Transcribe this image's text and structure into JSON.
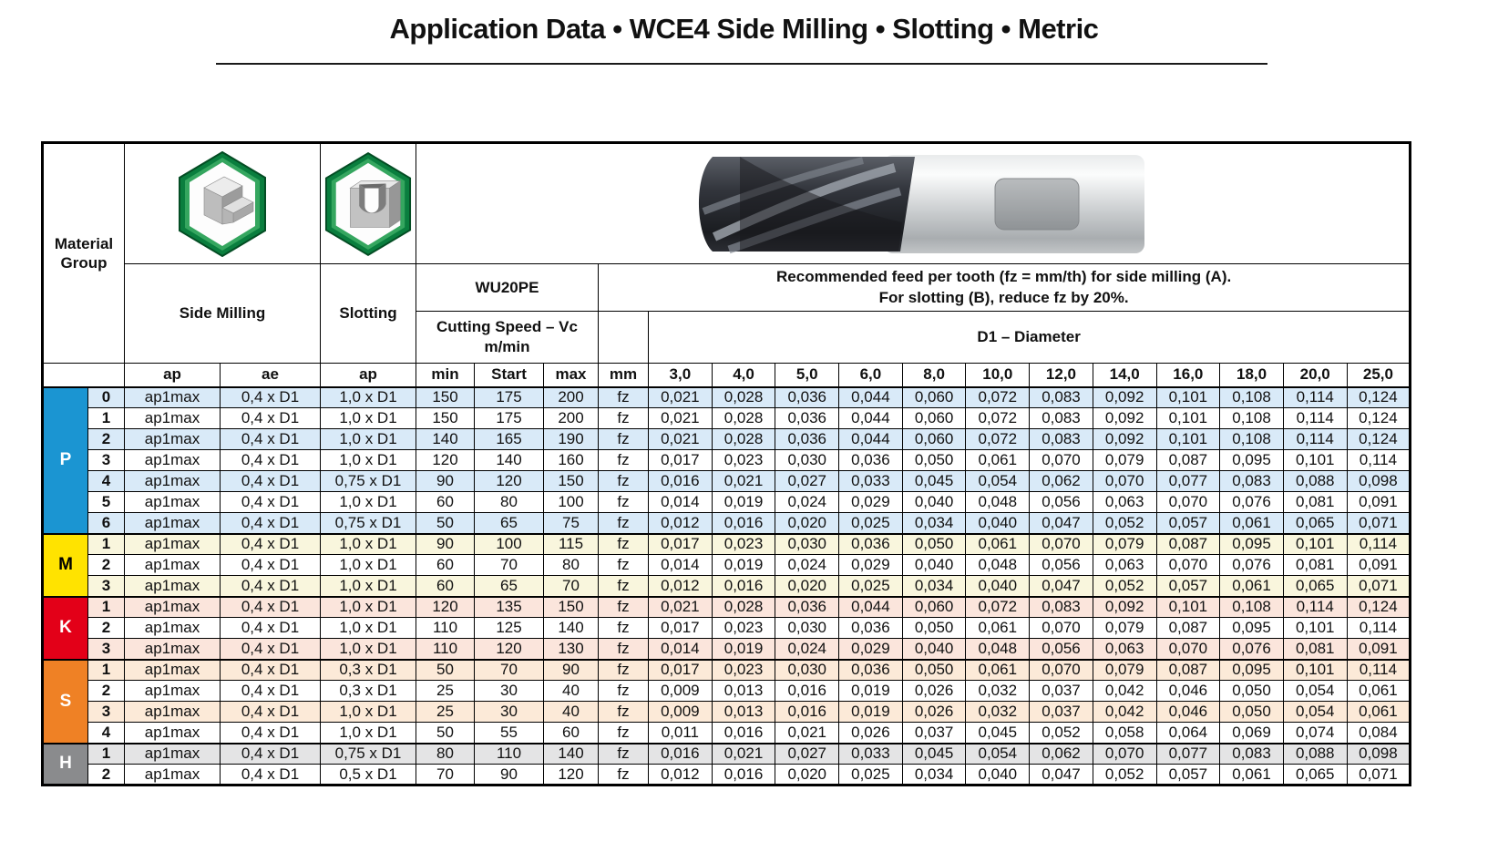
{
  "title": "Application Data • WCE4 Side Milling • Slotting • Metric",
  "header": {
    "material_group": "Material Group",
    "side_milling": "Side Milling",
    "slotting": "Slotting",
    "tool_grade": "WU20PE",
    "cutting_speed_line1": "Cutting Speed – Vc",
    "cutting_speed_line2": "m/min",
    "feed_note_line1": "Recommended feed per tooth (fz = mm/th) for side milling (A).",
    "feed_note_line2": "For slotting (B), reduce fz by 20%.",
    "diameter_label": "D1 – Diameter",
    "sub_headers": [
      "ap",
      "ae",
      "ap",
      "min",
      "Start",
      "max",
      "mm"
    ],
    "diameters": [
      "3,0",
      "4,0",
      "5,0",
      "6,0",
      "8,0",
      "10,0",
      "12,0",
      "14,0",
      "16,0",
      "18,0",
      "20,0",
      "25,0"
    ]
  },
  "icons": {
    "side_milling": "side-milling-hex-icon",
    "slotting": "slotting-hex-icon",
    "tool_photo": "end-mill-photo"
  },
  "groups": [
    {
      "letter": "P",
      "color": "#1b95d2",
      "text_color": "#ffffff",
      "stripe_color": "#d9eaf8",
      "rows": [
        {
          "num": "0",
          "ap": "ap1max",
          "ae": "0,4 x D1",
          "ap_slot": "1,0 x D1",
          "vc_min": "150",
          "vc_start": "175",
          "vc_max": "200",
          "unit": "fz",
          "fz": [
            "0,021",
            "0,028",
            "0,036",
            "0,044",
            "0,060",
            "0,072",
            "0,083",
            "0,092",
            "0,101",
            "0,108",
            "0,114",
            "0,124"
          ]
        },
        {
          "num": "1",
          "ap": "ap1max",
          "ae": "0,4 x D1",
          "ap_slot": "1,0 x D1",
          "vc_min": "150",
          "vc_start": "175",
          "vc_max": "200",
          "unit": "fz",
          "fz": [
            "0,021",
            "0,028",
            "0,036",
            "0,044",
            "0,060",
            "0,072",
            "0,083",
            "0,092",
            "0,101",
            "0,108",
            "0,114",
            "0,124"
          ]
        },
        {
          "num": "2",
          "ap": "ap1max",
          "ae": "0,4 x D1",
          "ap_slot": "1,0 x D1",
          "vc_min": "140",
          "vc_start": "165",
          "vc_max": "190",
          "unit": "fz",
          "fz": [
            "0,021",
            "0,028",
            "0,036",
            "0,044",
            "0,060",
            "0,072",
            "0,083",
            "0,092",
            "0,101",
            "0,108",
            "0,114",
            "0,124"
          ]
        },
        {
          "num": "3",
          "ap": "ap1max",
          "ae": "0,4 x D1",
          "ap_slot": "1,0 x D1",
          "vc_min": "120",
          "vc_start": "140",
          "vc_max": "160",
          "unit": "fz",
          "fz": [
            "0,017",
            "0,023",
            "0,030",
            "0,036",
            "0,050",
            "0,061",
            "0,070",
            "0,079",
            "0,087",
            "0,095",
            "0,101",
            "0,114"
          ]
        },
        {
          "num": "4",
          "ap": "ap1max",
          "ae": "0,4 x D1",
          "ap_slot": "0,75 x D1",
          "vc_min": "90",
          "vc_start": "120",
          "vc_max": "150",
          "unit": "fz",
          "fz": [
            "0,016",
            "0,021",
            "0,027",
            "0,033",
            "0,045",
            "0,054",
            "0,062",
            "0,070",
            "0,077",
            "0,083",
            "0,088",
            "0,098"
          ]
        },
        {
          "num": "5",
          "ap": "ap1max",
          "ae": "0,4 x D1",
          "ap_slot": "1,0 x D1",
          "vc_min": "60",
          "vc_start": "80",
          "vc_max": "100",
          "unit": "fz",
          "fz": [
            "0,014",
            "0,019",
            "0,024",
            "0,029",
            "0,040",
            "0,048",
            "0,056",
            "0,063",
            "0,070",
            "0,076",
            "0,081",
            "0,091"
          ]
        },
        {
          "num": "6",
          "ap": "ap1max",
          "ae": "0,4 x D1",
          "ap_slot": "0,75 x D1",
          "vc_min": "50",
          "vc_start": "65",
          "vc_max": "75",
          "unit": "fz",
          "fz": [
            "0,012",
            "0,016",
            "0,020",
            "0,025",
            "0,034",
            "0,040",
            "0,047",
            "0,052",
            "0,057",
            "0,061",
            "0,065",
            "0,071"
          ]
        }
      ]
    },
    {
      "letter": "M",
      "color": "#ffe300",
      "text_color": "#000000",
      "stripe_color": "#f9f6dd",
      "rows": [
        {
          "num": "1",
          "ap": "ap1max",
          "ae": "0,4 x D1",
          "ap_slot": "1,0 x D1",
          "vc_min": "90",
          "vc_start": "100",
          "vc_max": "115",
          "unit": "fz",
          "fz": [
            "0,017",
            "0,023",
            "0,030",
            "0,036",
            "0,050",
            "0,061",
            "0,070",
            "0,079",
            "0,087",
            "0,095",
            "0,101",
            "0,114"
          ]
        },
        {
          "num": "2",
          "ap": "ap1max",
          "ae": "0,4 x D1",
          "ap_slot": "1,0 x D1",
          "vc_min": "60",
          "vc_start": "70",
          "vc_max": "80",
          "unit": "fz",
          "fz": [
            "0,014",
            "0,019",
            "0,024",
            "0,029",
            "0,040",
            "0,048",
            "0,056",
            "0,063",
            "0,070",
            "0,076",
            "0,081",
            "0,091"
          ]
        },
        {
          "num": "3",
          "ap": "ap1max",
          "ae": "0,4 x D1",
          "ap_slot": "1,0 x D1",
          "vc_min": "60",
          "vc_start": "65",
          "vc_max": "70",
          "unit": "fz",
          "fz": [
            "0,012",
            "0,016",
            "0,020",
            "0,025",
            "0,034",
            "0,040",
            "0,047",
            "0,052",
            "0,057",
            "0,061",
            "0,065",
            "0,071"
          ]
        }
      ]
    },
    {
      "letter": "K",
      "color": "#e30018",
      "text_color": "#ffffff",
      "stripe_color": "#fbe5dc",
      "rows": [
        {
          "num": "1",
          "ap": "ap1max",
          "ae": "0,4 x D1",
          "ap_slot": "1,0 x D1",
          "vc_min": "120",
          "vc_start": "135",
          "vc_max": "150",
          "unit": "fz",
          "fz": [
            "0,021",
            "0,028",
            "0,036",
            "0,044",
            "0,060",
            "0,072",
            "0,083",
            "0,092",
            "0,101",
            "0,108",
            "0,114",
            "0,124"
          ]
        },
        {
          "num": "2",
          "ap": "ap1max",
          "ae": "0,4 x D1",
          "ap_slot": "1,0 x D1",
          "vc_min": "110",
          "vc_start": "125",
          "vc_max": "140",
          "unit": "fz",
          "fz": [
            "0,017",
            "0,023",
            "0,030",
            "0,036",
            "0,050",
            "0,061",
            "0,070",
            "0,079",
            "0,087",
            "0,095",
            "0,101",
            "0,114"
          ]
        },
        {
          "num": "3",
          "ap": "ap1max",
          "ae": "0,4 x D1",
          "ap_slot": "1,0 x D1",
          "vc_min": "110",
          "vc_start": "120",
          "vc_max": "130",
          "unit": "fz",
          "fz": [
            "0,014",
            "0,019",
            "0,024",
            "0,029",
            "0,040",
            "0,048",
            "0,056",
            "0,063",
            "0,070",
            "0,076",
            "0,081",
            "0,091"
          ]
        }
      ]
    },
    {
      "letter": "S",
      "color": "#ef8125",
      "text_color": "#ffffff",
      "stripe_color": "#fcead8",
      "rows": [
        {
          "num": "1",
          "ap": "ap1max",
          "ae": "0,4 x D1",
          "ap_slot": "0,3 x D1",
          "vc_min": "50",
          "vc_start": "70",
          "vc_max": "90",
          "unit": "fz",
          "fz": [
            "0,017",
            "0,023",
            "0,030",
            "0,036",
            "0,050",
            "0,061",
            "0,070",
            "0,079",
            "0,087",
            "0,095",
            "0,101",
            "0,114"
          ]
        },
        {
          "num": "2",
          "ap": "ap1max",
          "ae": "0,4 x D1",
          "ap_slot": "0,3 x D1",
          "vc_min": "25",
          "vc_start": "30",
          "vc_max": "40",
          "unit": "fz",
          "fz": [
            "0,009",
            "0,013",
            "0,016",
            "0,019",
            "0,026",
            "0,032",
            "0,037",
            "0,042",
            "0,046",
            "0,050",
            "0,054",
            "0,061"
          ]
        },
        {
          "num": "3",
          "ap": "ap1max",
          "ae": "0,4 x D1",
          "ap_slot": "1,0 x D1",
          "vc_min": "25",
          "vc_start": "30",
          "vc_max": "40",
          "unit": "fz",
          "fz": [
            "0,009",
            "0,013",
            "0,016",
            "0,019",
            "0,026",
            "0,032",
            "0,037",
            "0,042",
            "0,046",
            "0,050",
            "0,054",
            "0,061"
          ]
        },
        {
          "num": "4",
          "ap": "ap1max",
          "ae": "0,4 x D1",
          "ap_slot": "1,0 x D1",
          "vc_min": "50",
          "vc_start": "55",
          "vc_max": "60",
          "unit": "fz",
          "fz": [
            "0,011",
            "0,016",
            "0,021",
            "0,026",
            "0,037",
            "0,045",
            "0,052",
            "0,058",
            "0,064",
            "0,069",
            "0,074",
            "0,084"
          ]
        }
      ]
    },
    {
      "letter": "H",
      "color": "#8a8b8d",
      "text_color": "#ffffff",
      "stripe_color": "#e4e4e5",
      "rows": [
        {
          "num": "1",
          "ap": "ap1max",
          "ae": "0,4 x D1",
          "ap_slot": "0,75 x D1",
          "vc_min": "80",
          "vc_start": "110",
          "vc_max": "140",
          "unit": "fz",
          "fz": [
            "0,016",
            "0,021",
            "0,027",
            "0,033",
            "0,045",
            "0,054",
            "0,062",
            "0,070",
            "0,077",
            "0,083",
            "0,088",
            "0,098"
          ]
        },
        {
          "num": "2",
          "ap": "ap1max",
          "ae": "0,4 x D1",
          "ap_slot": "0,5 x D1",
          "vc_min": "70",
          "vc_start": "90",
          "vc_max": "120",
          "unit": "fz",
          "fz": [
            "0,012",
            "0,016",
            "0,020",
            "0,025",
            "0,034",
            "0,040",
            "0,047",
            "0,052",
            "0,057",
            "0,061",
            "0,065",
            "0,071"
          ]
        }
      ]
    }
  ]
}
